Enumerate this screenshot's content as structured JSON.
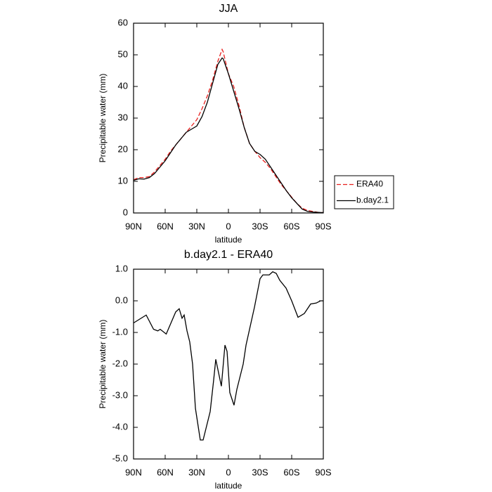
{
  "chart_data": [
    {
      "type": "line",
      "title": "JJA",
      "xlabel": "latitude",
      "ylabel": "Precipitable water (mm)",
      "x": [
        90,
        85,
        80,
        75,
        70,
        65,
        60,
        55,
        50,
        45,
        40,
        35,
        30,
        25,
        20,
        15,
        10,
        6,
        5,
        0,
        -5,
        -10,
        -15,
        -20,
        -25,
        -30,
        -35,
        -40,
        -45,
        -50,
        -55,
        -60,
        -65,
        -70,
        -75,
        -80,
        -85,
        -90
      ],
      "series": [
        {
          "name": "ERA40",
          "color": "#e8201e",
          "style": "dashed",
          "values": [
            10.5,
            11.2,
            11.2,
            11.5,
            13,
            15,
            17,
            19.5,
            21.5,
            23.5,
            25.5,
            27.5,
            29.5,
            33,
            37,
            42,
            48,
            51.7,
            51,
            44,
            40,
            34,
            27,
            22,
            19.5,
            17.5,
            16,
            14,
            11.5,
            9,
            7,
            5,
            3,
            1.5,
            0.8,
            0.5,
            0.2,
            0.1
          ]
        },
        {
          "name": "b.day2.1",
          "color": "#000000",
          "style": "solid",
          "values": [
            10.3,
            10.8,
            10.7,
            11.2,
            12.5,
            14.5,
            16.5,
            19,
            21.5,
            23.5,
            25.5,
            26.5,
            27.5,
            30.5,
            35,
            41,
            47,
            49,
            48.8,
            44,
            38.5,
            33,
            27,
            22,
            19.5,
            18.5,
            17,
            14.5,
            12,
            9.5,
            7,
            4.8,
            3,
            1.2,
            0.5,
            0.3,
            0.2,
            0.1
          ]
        }
      ],
      "xlim": [
        90,
        -90
      ],
      "xticks": [
        {
          "value": 90,
          "label": "90N"
        },
        {
          "value": 60,
          "label": "60N"
        },
        {
          "value": 30,
          "label": "30N"
        },
        0,
        {
          "value": -30,
          "label": "30S"
        },
        {
          "value": -60,
          "label": "60S"
        },
        {
          "value": -90,
          "label": "90S"
        }
      ],
      "ylim": [
        0,
        60
      ],
      "yticks": [
        0,
        10,
        20,
        30,
        40,
        50,
        60
      ],
      "grid": false,
      "legend": "right"
    },
    {
      "type": "line",
      "title": "b.day2.1 - ERA40",
      "xlabel": "latitude",
      "ylabel": "Precipitable water (mm)",
      "color": "#000000",
      "x": [
        90,
        78,
        71,
        67,
        64.7,
        59,
        50,
        46.7,
        44,
        42,
        39.3,
        36.7,
        34,
        31.3,
        26.7,
        24,
        17.3,
        14,
        12,
        6.7,
        3.3,
        1.3,
        -1.3,
        -5.3,
        -8,
        -14,
        -16.7,
        -24.7,
        -30,
        -32.7,
        -38.7,
        -42,
        -45.3,
        -48.7,
        -54.7,
        -60,
        -66,
        -72,
        -78,
        -83.3,
        -87.3,
        -90
      ],
      "values": [
        -0.7,
        -0.45,
        -0.9,
        -0.95,
        -0.9,
        -1.05,
        -0.35,
        -0.25,
        -0.55,
        -0.45,
        -0.95,
        -1.3,
        -2.0,
        -3.4,
        -4.4,
        -4.4,
        -3.5,
        -2.5,
        -1.85,
        -2.7,
        -1.4,
        -1.6,
        -2.9,
        -3.3,
        -2.8,
        -2.0,
        -1.4,
        -0.2,
        0.7,
        0.82,
        0.82,
        0.92,
        0.87,
        0.65,
        0.4,
        0.0,
        -0.52,
        -0.4,
        -0.1,
        -0.07,
        0.0,
        0.0
      ],
      "xlim": [
        90,
        -90
      ],
      "xticks": [
        {
          "value": 90,
          "label": "90N"
        },
        {
          "value": 60,
          "label": "60N"
        },
        {
          "value": 30,
          "label": "30N"
        },
        0,
        {
          "value": -30,
          "label": "30S"
        },
        {
          "value": -60,
          "label": "60S"
        },
        {
          "value": -90,
          "label": "90S"
        }
      ],
      "ylim": [
        -5,
        1
      ],
      "yticks": [
        {
          "value": -5,
          "label": "-5.0"
        },
        {
          "value": -4,
          "label": "-4.0"
        },
        {
          "value": -3,
          "label": "-3.0"
        },
        {
          "value": -2,
          "label": "-2.0"
        },
        {
          "value": -1,
          "label": "-1.0"
        },
        {
          "value": 0,
          "label": "0.0"
        },
        {
          "value": 1,
          "label": "1.0"
        }
      ],
      "grid": false
    }
  ]
}
